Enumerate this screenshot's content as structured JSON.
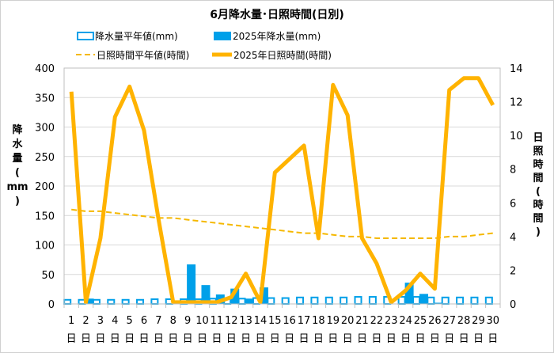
{
  "chart_data": {
    "type": "bar+line",
    "title": "6月降水量･日照時間(日別)",
    "categories": [
      "1",
      "2",
      "3",
      "4",
      "5",
      "6",
      "7",
      "8",
      "9",
      "10",
      "11",
      "12",
      "13",
      "14",
      "15",
      "16",
      "17",
      "18",
      "19",
      "20",
      "21",
      "22",
      "23",
      "24",
      "25",
      "26",
      "27",
      "28",
      "29",
      "30"
    ],
    "category_suffix": "日",
    "y_left": {
      "label": [
        "降",
        "水",
        "量",
        "(",
        "mm",
        ")"
      ],
      "ylim": [
        0,
        400
      ],
      "ticks": [
        0,
        50,
        100,
        150,
        200,
        250,
        300,
        350,
        400
      ]
    },
    "y_right": {
      "label": [
        "日",
        "照",
        "時",
        "間",
        "(",
        "時",
        "間",
        ")"
      ],
      "ylim": [
        0,
        14
      ],
      "ticks": [
        0,
        2,
        4,
        6,
        8,
        10,
        12,
        14
      ]
    },
    "grid": true,
    "legend_position": "top",
    "series": [
      {
        "name": "降水量平年値(mm)",
        "type": "bar-outline",
        "axis": "left",
        "color": "#00a0e9",
        "values": [
          7,
          7,
          7,
          7,
          7,
          7,
          8,
          8,
          8,
          8,
          9,
          9,
          9,
          10,
          10,
          10,
          11,
          11,
          11,
          11,
          12,
          12,
          12,
          12,
          12,
          11,
          11,
          11,
          11,
          11
        ]
      },
      {
        "name": "2025年降水量(mm)",
        "type": "bar",
        "axis": "left",
        "color": "#00a0e9",
        "values": [
          0,
          9,
          0,
          0,
          0,
          0,
          0,
          0,
          67,
          32,
          16,
          26,
          9,
          28,
          0,
          0,
          0,
          0,
          0,
          0,
          0,
          0,
          0,
          36,
          17,
          2,
          0,
          0,
          0,
          0
        ]
      },
      {
        "name": "日照時間平年値(時間)",
        "type": "line-dashed",
        "axis": "right",
        "color": "#f5b800",
        "values": [
          5.6,
          5.5,
          5.5,
          5.4,
          5.3,
          5.2,
          5.1,
          5.1,
          5.0,
          4.9,
          4.8,
          4.7,
          4.6,
          4.5,
          4.4,
          4.3,
          4.2,
          4.2,
          4.1,
          4.0,
          4.0,
          3.9,
          3.9,
          3.9,
          3.9,
          3.9,
          4.0,
          4.0,
          4.1,
          4.2
        ]
      },
      {
        "name": "2025年日照時間(時間)",
        "type": "line",
        "axis": "right",
        "color": "#ffb300",
        "values": [
          12.6,
          0.1,
          3.9,
          11.1,
          12.9,
          10.3,
          5.0,
          0.1,
          0.1,
          0.1,
          0.1,
          0.4,
          1.8,
          0.1,
          7.8,
          8.6,
          9.4,
          3.9,
          13.0,
          11.2,
          3.9,
          2.4,
          0.1,
          0.8,
          1.8,
          0.9,
          12.7,
          13.4,
          13.4,
          11.8
        ]
      }
    ]
  }
}
